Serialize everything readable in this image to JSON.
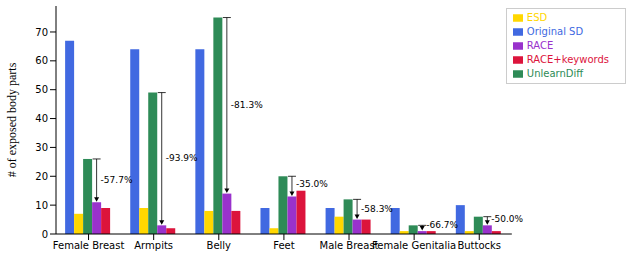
{
  "chart_data": {
    "type": "bar",
    "ylabel": "# of exposed body parts",
    "categories": [
      "Female Breast",
      "Armpits",
      "Belly",
      "Feet",
      "Male Breast",
      "Female Genitalia",
      "Buttocks"
    ],
    "series": [
      {
        "name": "Original SD",
        "color": "#4169e1",
        "values": [
          67,
          64,
          64,
          9,
          9,
          9,
          10
        ]
      },
      {
        "name": "ESD",
        "color": "#ffd700",
        "values": [
          7,
          9,
          8,
          2,
          6,
          1,
          1
        ]
      },
      {
        "name": "UnlearnDiff",
        "color": "#2e8b57",
        "values": [
          26,
          49,
          75,
          20,
          12,
          3,
          6
        ]
      },
      {
        "name": "RACE",
        "color": "#9932cc",
        "values": [
          11,
          3,
          14,
          13,
          5,
          1,
          3
        ]
      },
      {
        "name": "RACE+keywords",
        "color": "#dc143c",
        "values": [
          9,
          2,
          8,
          15,
          5,
          1,
          1
        ]
      }
    ],
    "ylim": [
      0,
      79
    ],
    "yticks": [
      0,
      10,
      20,
      30,
      40,
      50,
      60,
      70
    ],
    "legend": "upper right",
    "annotations": [
      {
        "category": "Female Breast",
        "from": "UnlearnDiff",
        "to": "RACE",
        "text": "-57.7%"
      },
      {
        "category": "Armpits",
        "from": "UnlearnDiff",
        "to": "RACE",
        "text": "-93.9%"
      },
      {
        "category": "Belly",
        "from": "UnlearnDiff",
        "to": "RACE",
        "text": "-81.3%"
      },
      {
        "category": "Feet",
        "from": "UnlearnDiff",
        "to": "RACE",
        "text": "-35.0%"
      },
      {
        "category": "Male Breast",
        "from": "UnlearnDiff",
        "to": "RACE",
        "text": "-58.3%"
      },
      {
        "category": "Female Genitalia",
        "from": "UnlearnDiff",
        "to": "RACE",
        "text": "-66.7%"
      },
      {
        "category": "Buttocks",
        "from": "UnlearnDiff",
        "to": "RACE",
        "text": "-50.0%"
      }
    ]
  }
}
